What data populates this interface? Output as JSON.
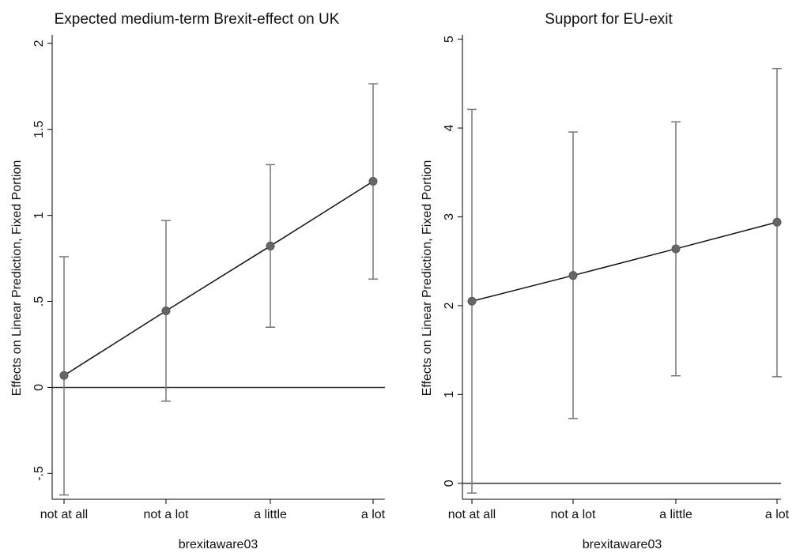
{
  "chart_data": [
    {
      "type": "line",
      "title": "Expected medium-term Brexit-effect on UK",
      "xlabel": "brexitaware03",
      "ylabel": "Effects on Linear Prediction, Fixed Portion",
      "categories": [
        "not at all",
        "not a lot",
        "a little",
        "a lot"
      ],
      "values": [
        0.07,
        0.445,
        0.822,
        1.198
      ],
      "ci_low": [
        -0.625,
        -0.08,
        0.35,
        0.63
      ],
      "ci_high": [
        0.76,
        0.97,
        1.295,
        1.765
      ],
      "ylim": [
        -0.65,
        2.05
      ],
      "yticks": [
        -0.5,
        0,
        0.5,
        1,
        1.5,
        2
      ],
      "ytick_labels": [
        "-.5",
        "0",
        ".5",
        "1",
        "1.5",
        "2"
      ],
      "reference_line": 0,
      "grid": false
    },
    {
      "type": "line",
      "title": "Support for EU-exit",
      "xlabel": "brexitaware03",
      "ylabel": "Effects on Linear Prediction, Fixed Portion",
      "categories": [
        "not at all",
        "not a lot",
        "a little",
        "a lot"
      ],
      "values": [
        2.05,
        2.34,
        2.64,
        2.94
      ],
      "ci_low": [
        -0.11,
        0.73,
        1.21,
        1.2
      ],
      "ci_high": [
        4.21,
        3.955,
        4.07,
        4.67
      ],
      "ylim": [
        -0.18,
        5.05
      ],
      "yticks": [
        0,
        1,
        2,
        3,
        4,
        5
      ],
      "ytick_labels": [
        "0",
        "1",
        "2",
        "3",
        "4",
        "5"
      ],
      "reference_line": 0,
      "grid": false
    }
  ]
}
